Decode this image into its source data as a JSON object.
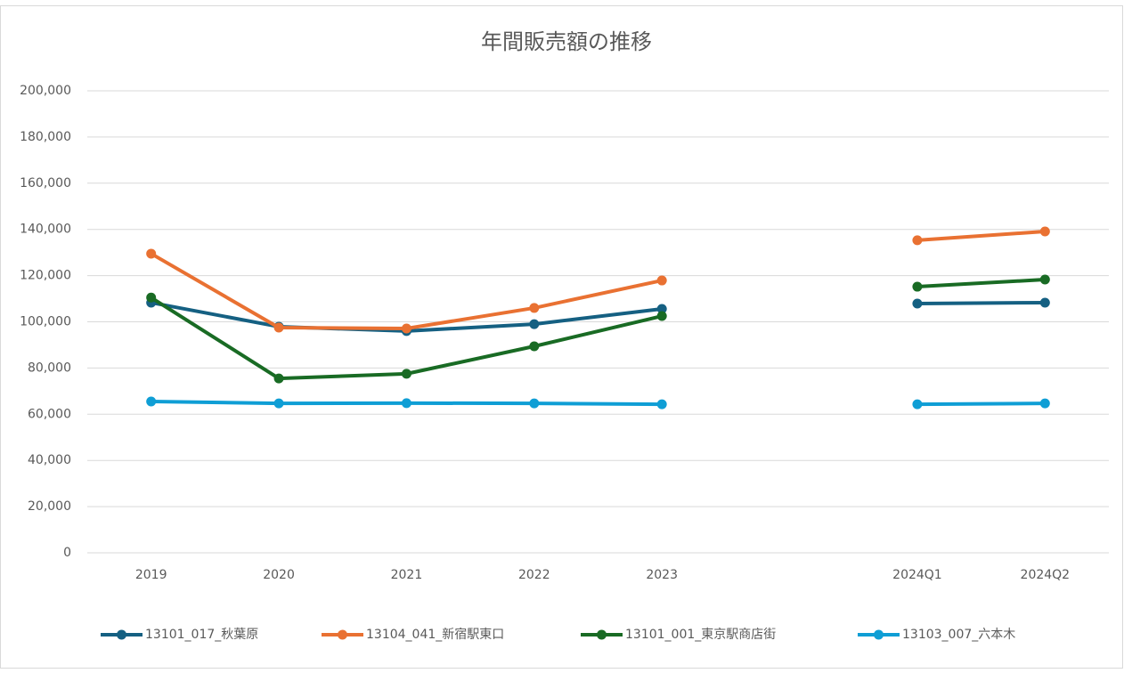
{
  "chart_data": {
    "type": "line",
    "title": "年間販売額の推移",
    "categories": [
      "2019",
      "2020",
      "2021",
      "2022",
      "2023",
      null,
      "2024Q1",
      "2024Q2"
    ],
    "series": [
      {
        "name": "13101_017_秋葉原",
        "color": "#156082",
        "values": [
          108300,
          97900,
          96000,
          99000,
          105600,
          null,
          107900,
          108300
        ]
      },
      {
        "name": "13104_041_新宿駅東口",
        "color": "#e97132",
        "values": [
          129500,
          97500,
          97100,
          106000,
          117900,
          null,
          135300,
          139100
        ]
      },
      {
        "name": "13101_001_東京駅商店街",
        "color": "#196b24",
        "values": [
          110500,
          75500,
          77500,
          89400,
          102500,
          null,
          115200,
          118300
        ]
      },
      {
        "name": "13103_007_六本木",
        "color": "#0f9ed5",
        "values": [
          65500,
          64700,
          64800,
          64700,
          64300,
          null,
          64300,
          64700
        ]
      }
    ],
    "ylim": [
      0,
      200000
    ],
    "yticks": [
      0,
      {
        "value": 20000,
        "label": "20,000"
      },
      {
        "value": 40000,
        "label": "40,000"
      },
      {
        "value": 60000,
        "label": "60,000"
      },
      {
        "value": 80000,
        "label": "80,000"
      },
      {
        "value": 100000,
        "label": "100,000"
      },
      {
        "value": 120000,
        "label": "120,000"
      },
      {
        "value": 140000,
        "label": "140,000"
      },
      {
        "value": 160000,
        "label": "160,000"
      },
      {
        "value": 180000,
        "label": "180,000"
      },
      {
        "value": 200000,
        "label": "200,000"
      }
    ],
    "grid": true
  }
}
